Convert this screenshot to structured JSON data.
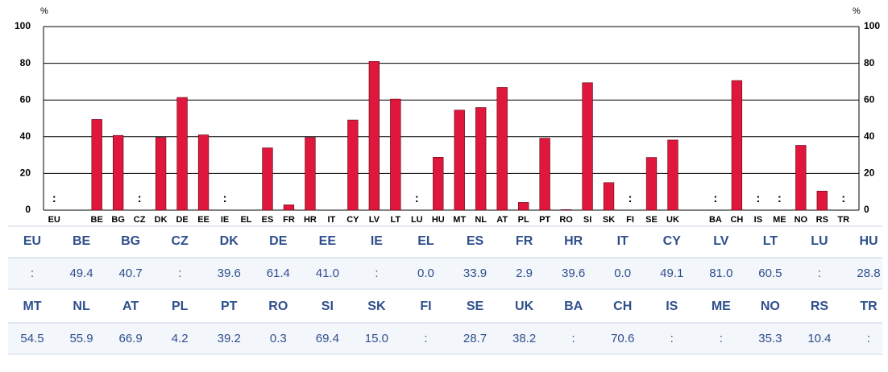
{
  "chart_data": {
    "type": "bar",
    "unit": "%",
    "categories": [
      "EU",
      null,
      "BE",
      "BG",
      "CZ",
      "DK",
      "DE",
      "EE",
      "IE",
      "EL",
      "ES",
      "FR",
      "HR",
      "IT",
      "CY",
      "LV",
      "LT",
      "LU",
      "HU",
      "MT",
      "NL",
      "AT",
      "PL",
      "PT",
      "RO",
      "SI",
      "SK",
      "FI",
      "SE",
      "UK",
      null,
      "BA",
      "CH",
      "IS",
      "ME",
      "NO",
      "RS",
      "TR"
    ],
    "values": [
      null,
      null,
      49.4,
      40.7,
      null,
      39.6,
      61.4,
      41.0,
      null,
      0.0,
      33.9,
      2.9,
      39.6,
      0.0,
      49.1,
      81.0,
      60.5,
      null,
      28.8,
      54.5,
      55.9,
      66.9,
      4.2,
      39.2,
      0.3,
      69.4,
      15.0,
      null,
      28.7,
      38.2,
      null,
      null,
      70.6,
      null,
      null,
      35.3,
      10.4,
      null
    ],
    "value_labels": [
      ":",
      null,
      "49.4",
      "40.7",
      ":",
      "39.6",
      "61.4",
      "41.0",
      ":",
      "0.0",
      "33.9",
      "2.9",
      "39.6",
      "0.0",
      "49.1",
      "81.0",
      "60.5",
      ":",
      "28.8",
      "54.5",
      "55.9",
      "66.9",
      "4.2",
      "39.2",
      "0.3",
      "69.4",
      "15.0",
      ":",
      "28.7",
      "38.2",
      null,
      ":",
      "70.6",
      ":",
      ":",
      "35.3",
      "10.4",
      ":"
    ],
    "color": "#e0173c",
    "ylim": [
      0,
      100
    ],
    "yticks": [
      0,
      20,
      40,
      60,
      80,
      100
    ],
    "grid": true
  }
}
